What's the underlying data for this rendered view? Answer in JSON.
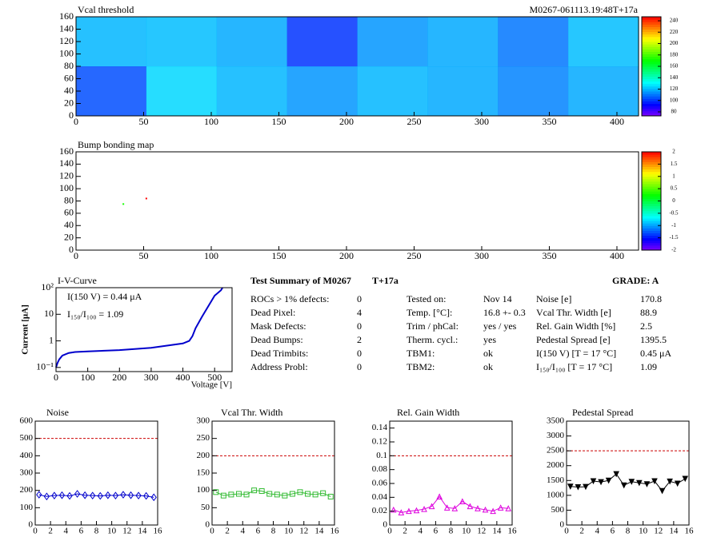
{
  "chart_data": [
    {
      "type": "heatmap",
      "title": "Vcal threshold",
      "subtitle": "M0267-061113.19:48T+17a",
      "xlim": [
        0,
        416
      ],
      "ylim": [
        0,
        160
      ],
      "xticks": [
        0,
        50,
        100,
        150,
        200,
        250,
        300,
        350,
        400
      ],
      "yticks": [
        0,
        20,
        40,
        60,
        80,
        100,
        120,
        140,
        160
      ],
      "zlim": [
        73,
        247
      ],
      "zticks": [
        80,
        100,
        120,
        140,
        160,
        180,
        200,
        220,
        240
      ],
      "values": [
        [
          120,
          121,
          118,
          100,
          115,
          118,
          110,
          121
        ],
        [
          104,
          125,
          120,
          115,
          120,
          118,
          112,
          118
        ]
      ]
    },
    {
      "type": "scatter",
      "title": "Bump bonding map",
      "xlim": [
        0,
        416
      ],
      "ylim": [
        0,
        160
      ],
      "xticks": [
        0,
        50,
        100,
        150,
        200,
        250,
        300,
        350,
        400
      ],
      "yticks": [
        0,
        20,
        40,
        60,
        80,
        100,
        120,
        140,
        160
      ],
      "zlim": [
        -2,
        2
      ],
      "zticks": [
        -2,
        -1.5,
        -1,
        -0.5,
        0,
        0.5,
        1,
        1.5,
        2
      ],
      "x": [
        35,
        52
      ],
      "y": [
        75,
        84
      ],
      "values": [
        0.3,
        2
      ]
    },
    {
      "type": "line",
      "title": "I-V-Curve",
      "xlabel": "Voltage [V]",
      "ylabel": "Current [μA]",
      "log_y": true,
      "annotations": [
        "I(150 V) = 0.44 μA",
        "I₁₅₀/I₁₀₀ =  1.09"
      ],
      "xlim": [
        0,
        555
      ],
      "ylim": [
        0.07,
        100
      ],
      "xticks": [
        0,
        100,
        200,
        300,
        400,
        500
      ],
      "yticks": [
        {
          "value": 0.1,
          "label": "10⁻¹"
        },
        1,
        10,
        {
          "value": 100,
          "label": "10²"
        }
      ],
      "series": [
        {
          "color": "#0000cc",
          "x": [
            0,
            5,
            10,
            20,
            40,
            60,
            100,
            200,
            300,
            400,
            420,
            430,
            440,
            460,
            480,
            500,
            520,
            525
          ],
          "values": [
            0.1,
            0.15,
            0.2,
            0.28,
            0.35,
            0.38,
            0.4,
            0.45,
            0.55,
            0.8,
            1.0,
            1.5,
            3,
            8,
            20,
            50,
            80,
            100
          ]
        }
      ]
    },
    {
      "type": "line",
      "title": "Noise",
      "marker": "diamond",
      "threshold": 500,
      "xlim": [
        0,
        16
      ],
      "ylim": [
        0,
        600
      ],
      "xticks": [
        0,
        2,
        4,
        6,
        8,
        10,
        12,
        14,
        16
      ],
      "yticks": [
        0,
        100,
        200,
        300,
        400,
        500,
        600
      ],
      "series": [
        {
          "color": "#0000cc",
          "x": [
            0.5,
            1.5,
            2.5,
            3.5,
            4.5,
            5.5,
            6.5,
            7.5,
            8.5,
            9.5,
            10.5,
            11.5,
            12.5,
            13.5,
            14.5,
            15.5
          ],
          "values": [
            175,
            165,
            170,
            172,
            168,
            180,
            172,
            170,
            168,
            172,
            170,
            175,
            172,
            170,
            168,
            160
          ]
        }
      ]
    },
    {
      "type": "line",
      "title": "Vcal Thr. Width",
      "marker": "square",
      "threshold": 200,
      "xlim": [
        0,
        16
      ],
      "ylim": [
        0,
        300
      ],
      "xticks": [
        0,
        2,
        4,
        6,
        8,
        10,
        12,
        14,
        16
      ],
      "yticks": [
        0,
        50,
        100,
        150,
        200,
        250,
        300
      ],
      "series": [
        {
          "color": "#33bb33",
          "x": [
            0.5,
            1.5,
            2.5,
            3.5,
            4.5,
            5.5,
            6.5,
            7.5,
            8.5,
            9.5,
            10.5,
            11.5,
            12.5,
            13.5,
            14.5,
            15.5
          ],
          "values": [
            95,
            85,
            88,
            90,
            88,
            100,
            98,
            90,
            88,
            85,
            90,
            95,
            90,
            88,
            92,
            82
          ]
        }
      ]
    },
    {
      "type": "line",
      "title": "Rel. Gain Width",
      "marker": "triangle",
      "threshold": 0.1,
      "xlim": [
        0,
        16
      ],
      "ylim": [
        0,
        0.15
      ],
      "xticks": [
        0,
        2,
        4,
        6,
        8,
        10,
        12,
        14,
        16
      ],
      "yticks": [
        0,
        0.02,
        0.04,
        0.06,
        0.08,
        0.1,
        0.12,
        0.14
      ],
      "series": [
        {
          "color": "#dd00dd",
          "x": [
            0.5,
            1.5,
            2.5,
            3.5,
            4.5,
            5.5,
            6.5,
            7.5,
            8.5,
            9.5,
            10.5,
            11.5,
            12.5,
            13.5,
            14.5,
            15.5
          ],
          "values": [
            0.022,
            0.018,
            0.02,
            0.021,
            0.023,
            0.027,
            0.041,
            0.025,
            0.024,
            0.034,
            0.027,
            0.024,
            0.022,
            0.02,
            0.025,
            0.024
          ]
        }
      ]
    },
    {
      "type": "line",
      "title": "Pedestal Spread",
      "marker": "down-triangle",
      "threshold": 2500,
      "xlim": [
        0,
        16
      ],
      "ylim": [
        0,
        3500
      ],
      "xticks": [
        0,
        2,
        4,
        6,
        8,
        10,
        12,
        14,
        16
      ],
      "yticks": [
        0,
        500,
        1000,
        1500,
        2000,
        2500,
        3000,
        3500
      ],
      "series": [
        {
          "color": "#000000",
          "x": [
            0.5,
            1.5,
            2.5,
            3.5,
            4.5,
            5.5,
            6.5,
            7.5,
            8.5,
            9.5,
            10.5,
            11.5,
            12.5,
            13.5,
            14.5,
            15.5
          ],
          "values": [
            1300,
            1280,
            1290,
            1480,
            1450,
            1500,
            1720,
            1340,
            1460,
            1420,
            1380,
            1480,
            1150,
            1470,
            1400,
            1560
          ]
        }
      ]
    }
  ],
  "summary": {
    "title": "Test Summary of M0267",
    "tag": "T+17a",
    "grade": "GRADE:  A",
    "left": [
      [
        "ROCs > 1% defects:",
        "0"
      ],
      [
        "Dead Pixel:",
        "4"
      ],
      [
        "Mask Defects:",
        "0"
      ],
      [
        "Dead Bumps:",
        "2"
      ],
      [
        "Dead Trimbits:",
        "0"
      ],
      [
        "Address Probl:",
        "0"
      ]
    ],
    "middle": [
      [
        "Tested on:",
        "Nov 14"
      ],
      [
        "Temp. [°C]:",
        "16.8 +- 0.3"
      ],
      [
        "Trim / phCal:",
        "yes / yes"
      ],
      [
        "Therm. cycl.:",
        "yes"
      ],
      [
        "TBM1:",
        "ok"
      ],
      [
        "TBM2:",
        "ok"
      ]
    ],
    "right": [
      [
        "Noise [e]",
        "170.8"
      ],
      [
        "Vcal Thr. Width [e]",
        "88.9"
      ],
      [
        "Rel. Gain Width [%]",
        "2.5"
      ],
      [
        "Pedestal Spread [e]",
        "1395.5"
      ],
      [
        "I(150 V) [T = 17 °C]",
        "0.45 μA"
      ],
      [
        "I₁₅₀/I₁₀₀  [T = 17 °C]",
        "1.09"
      ]
    ]
  }
}
